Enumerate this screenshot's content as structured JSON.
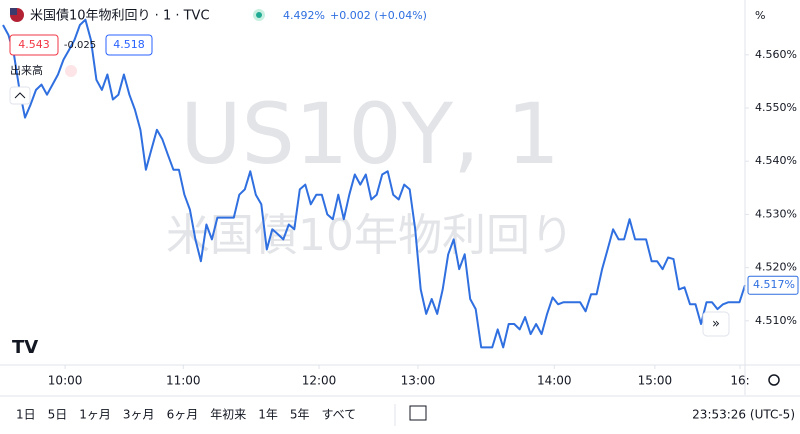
{
  "chart_data": {
    "type": "line",
    "title": "米国債10年物利回り · 1 · TVC",
    "quote": {
      "last": "4.492%",
      "change": "+0.002 (+0.04%)"
    },
    "sell": "4.543",
    "spread": "-0.025",
    "buy": "4.518",
    "indicator": "出来高",
    "watermark": [
      "US10Y, 1",
      "米国債10年物利回り"
    ],
    "axis_unit": "%",
    "last_price_label": "4.517%",
    "color": "#2f6fe0",
    "values": [
      4.5656,
      4.5637,
      4.56,
      4.5534,
      4.5482,
      4.5506,
      4.5534,
      4.5544,
      4.5525,
      4.5544,
      4.5563,
      4.5591,
      4.5609,
      4.5628,
      4.5656,
      4.5666,
      4.5628,
      4.5553,
      4.5534,
      4.5563,
      4.5516,
      4.5525,
      4.5563,
      4.5525,
      4.5497,
      4.5459,
      4.5384,
      4.5422,
      4.5459,
      4.5441,
      4.5412,
      4.5384,
      4.5384,
      4.5337,
      4.5309,
      4.5253,
      4.5212,
      4.5281,
      4.5253,
      4.5294,
      4.5294,
      4.5294,
      4.5294,
      4.5337,
      4.5347,
      4.5381,
      4.5337,
      4.5319,
      4.5234,
      4.5272,
      4.5263,
      4.5253,
      4.5281,
      4.5272,
      4.5347,
      4.5356,
      4.5319,
      4.5337,
      4.5337,
      4.53,
      4.5291,
      4.5337,
      4.5291,
      4.5337,
      4.5375,
      4.5356,
      4.5375,
      4.5328,
      4.5337,
      4.5375,
      4.5381,
      4.5337,
      4.5328,
      4.5356,
      4.5347,
      4.5272,
      4.5159,
      4.5113,
      4.5141,
      4.5113,
      4.5159,
      4.5225,
      4.5253,
      4.5197,
      4.5225,
      4.5141,
      4.5122,
      4.505,
      4.505,
      4.505,
      4.5084,
      4.505,
      4.5094,
      4.5094,
      4.5084,
      4.5107,
      4.5075,
      4.5094,
      4.5075,
      4.5113,
      4.5144,
      4.5131,
      4.5135,
      4.5135,
      4.5135,
      4.5135,
      4.5118,
      4.515,
      4.515,
      4.5197,
      4.5234,
      4.5272,
      4.5253,
      4.5253,
      4.5291,
      4.5253,
      4.5253,
      4.5253,
      4.5212,
      4.5212,
      4.5197,
      4.5219,
      4.5216,
      4.5159,
      4.5163,
      4.5131,
      4.5131,
      4.5094,
      4.5135,
      4.5135,
      4.5122,
      4.5131,
      4.5135,
      4.5135,
      4.5135,
      4.5167
    ],
    "xlim": [
      0,
      135
    ],
    "xticks": [
      {
        "value": 11.3,
        "label": "10:00"
      },
      {
        "value": 32.8,
        "label": "11:00"
      },
      {
        "value": 57.5,
        "label": "12:00"
      },
      {
        "value": 75.5,
        "label": "13:00"
      },
      {
        "value": 100.3,
        "label": "14:00"
      },
      {
        "value": 118.6,
        "label": "15:00"
      },
      {
        "value": 134.1,
        "label": "16:"
      }
    ],
    "ylim": [
      4.5017,
      4.5703
    ],
    "yticks": [
      {
        "value": 4.51,
        "label": "4.510%"
      },
      {
        "value": 4.52,
        "label": "4.520%"
      },
      {
        "value": 4.53,
        "label": "4.530%"
      },
      {
        "value": 4.54,
        "label": "4.540%"
      },
      {
        "value": 4.55,
        "label": "4.550%"
      },
      {
        "value": 4.56,
        "label": "4.560%"
      }
    ],
    "grid": false
  },
  "toolbar": {
    "ranges": [
      "1日",
      "5日",
      "1ヶ月",
      "3ヶ月",
      "6ヶ月",
      "年初来",
      "1年",
      "5年",
      "すべて"
    ],
    "clock": "23:53:26 (UTC-5)"
  }
}
